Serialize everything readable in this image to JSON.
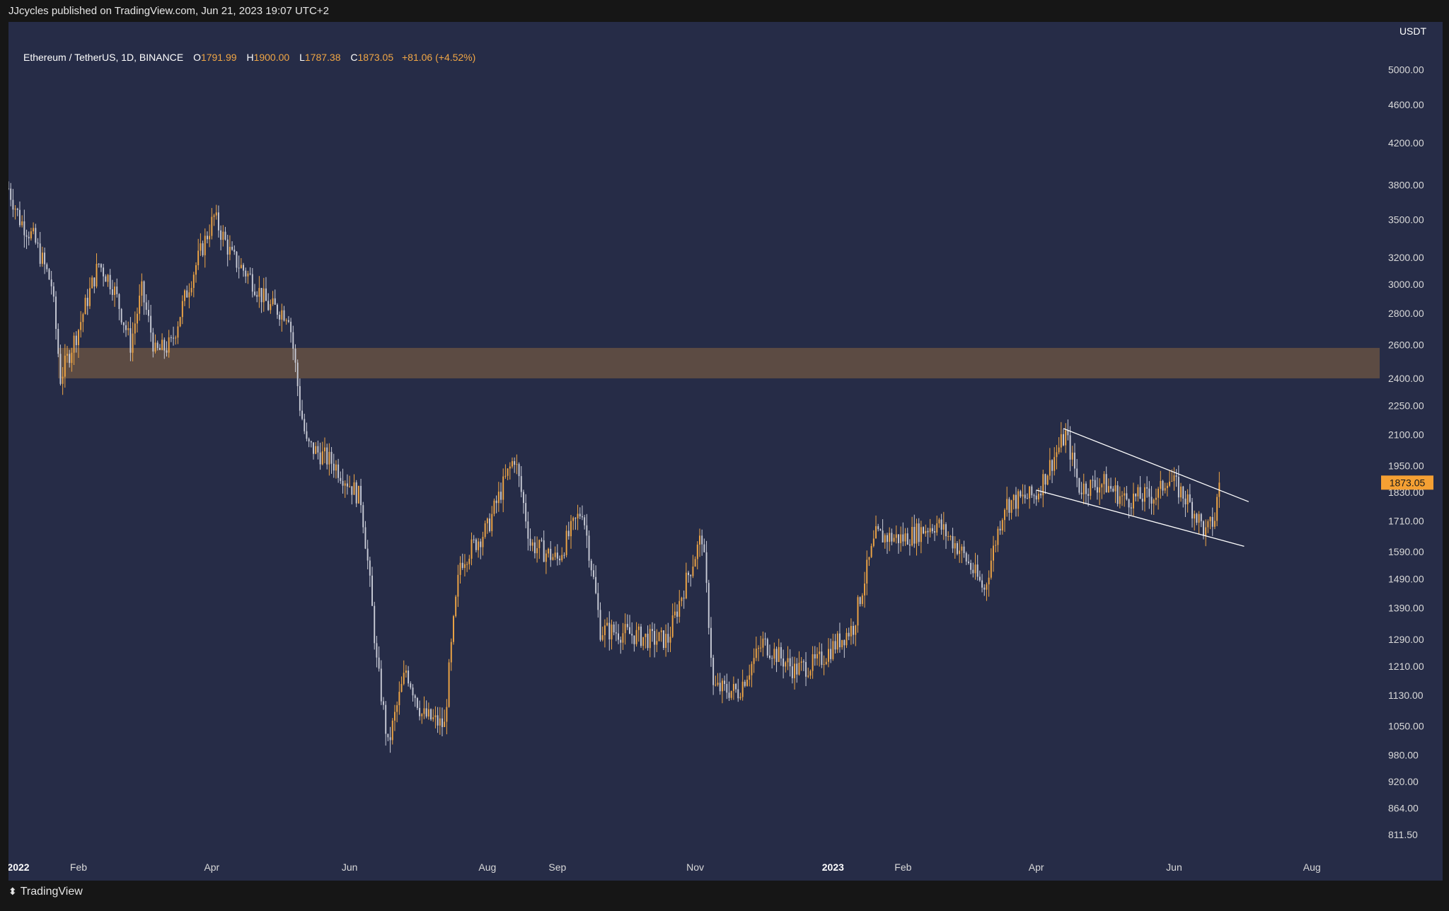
{
  "publisher_line": "JJcycles published on TradingView.com, Jun 21, 2023 19:07 UTC+2",
  "header": {
    "symbol": "Ethereum / TetherUS, 1D, BINANCE",
    "open_label": "O",
    "open_value": "1791.99",
    "high_label": "H",
    "high_value": "1900.00",
    "low_label": "L",
    "low_value": "1787.38",
    "close_label": "C",
    "close_value": "1873.05",
    "change": "+81.06 (+4.52%)"
  },
  "footer": {
    "brand": "TradingView",
    "logo_icon": "tradingview-logo-icon"
  },
  "colors": {
    "background": "#262c47",
    "up_candle": "#f0a645",
    "down_candle": "#c8cbd6",
    "zone": "#a0703f",
    "price_badge": "#f5a033"
  },
  "chart_data": {
    "type": "candlestick",
    "symbol": "ETHUSDT",
    "timeframe": "1D",
    "exchange": "BINANCE",
    "currency_label": "USDT",
    "y_scale": "log",
    "y_range": [
      770,
      5600
    ],
    "x_range": [
      "2022-01-01",
      "2023-08-31"
    ],
    "x_tick_labels": [
      {
        "date": "2022-01-01",
        "label": "2022",
        "bold": true
      },
      {
        "date": "2022-02-01",
        "label": "Feb"
      },
      {
        "date": "2022-04-01",
        "label": "Apr"
      },
      {
        "date": "2022-06-01",
        "label": "Jun"
      },
      {
        "date": "2022-08-01",
        "label": "Aug"
      },
      {
        "date": "2022-09-01",
        "label": "Sep"
      },
      {
        "date": "2022-11-01",
        "label": "Nov"
      },
      {
        "date": "2023-01-01",
        "label": "2023",
        "bold": true
      },
      {
        "date": "2023-02-01",
        "label": "Feb"
      },
      {
        "date": "2023-04-01",
        "label": "Apr"
      },
      {
        "date": "2023-06-01",
        "label": "Jun"
      },
      {
        "date": "2023-08-01",
        "label": "Aug"
      }
    ],
    "y_tick_labels": [
      "5000.00",
      "4600.00",
      "4200.00",
      "3800.00",
      "3500.00",
      "3200.00",
      "3000.00",
      "2800.00",
      "2600.00",
      "2400.00",
      "2250.00",
      "2100.00",
      "1950.00",
      "1830.00",
      "1710.00",
      "1590.00",
      "1490.00",
      "1390.00",
      "1290.00",
      "1210.00",
      "1130.00",
      "1050.00",
      "980.00",
      "920.00",
      "864.00",
      "811.50"
    ],
    "last_price": "1873.05",
    "price_path": [
      [
        "2022-01-01",
        3770
      ],
      [
        "2022-01-06",
        3500
      ],
      [
        "2022-01-12",
        3350
      ],
      [
        "2022-01-20",
        3000
      ],
      [
        "2022-01-24",
        2400
      ],
      [
        "2022-02-01",
        2700
      ],
      [
        "2022-02-10",
        3150
      ],
      [
        "2022-02-16",
        3000
      ],
      [
        "2022-02-24",
        2600
      ],
      [
        "2022-03-01",
        2950
      ],
      [
        "2022-03-07",
        2550
      ],
      [
        "2022-03-14",
        2600
      ],
      [
        "2022-03-22",
        3000
      ],
      [
        "2022-04-02",
        3520
      ],
      [
        "2022-04-10",
        3200
      ],
      [
        "2022-04-18",
        3050
      ],
      [
        "2022-04-26",
        2850
      ],
      [
        "2022-05-05",
        2800
      ],
      [
        "2022-05-10",
        2250
      ],
      [
        "2022-05-13",
        2050
      ],
      [
        "2022-05-25",
        1960
      ],
      [
        "2022-06-06",
        1800
      ],
      [
        "2022-06-13",
        1220
      ],
      [
        "2022-06-18",
        1000
      ],
      [
        "2022-06-26",
        1200
      ],
      [
        "2022-07-03",
        1080
      ],
      [
        "2022-07-13",
        1050
      ],
      [
        "2022-07-20",
        1550
      ],
      [
        "2022-08-01",
        1680
      ],
      [
        "2022-08-13",
        1990
      ],
      [
        "2022-08-20",
        1620
      ],
      [
        "2022-09-01",
        1560
      ],
      [
        "2022-09-12",
        1760
      ],
      [
        "2022-09-20",
        1320
      ],
      [
        "2022-10-01",
        1310
      ],
      [
        "2022-10-13",
        1290
      ],
      [
        "2022-10-20",
        1290
      ],
      [
        "2022-11-04",
        1650
      ],
      [
        "2022-11-09",
        1150
      ],
      [
        "2022-11-20",
        1140
      ],
      [
        "2022-12-01",
        1280
      ],
      [
        "2022-12-15",
        1200
      ],
      [
        "2022-12-25",
        1220
      ],
      [
        "2023-01-10",
        1330
      ],
      [
        "2023-01-20",
        1650
      ],
      [
        "2023-02-01",
        1640
      ],
      [
        "2023-02-16",
        1700
      ],
      [
        "2023-02-26",
        1600
      ],
      [
        "2023-03-09",
        1450
      ],
      [
        "2023-03-18",
        1780
      ],
      [
        "2023-04-01",
        1820
      ],
      [
        "2023-04-14",
        2100
      ],
      [
        "2023-04-20",
        1850
      ],
      [
        "2023-05-01",
        1870
      ],
      [
        "2023-05-10",
        1800
      ],
      [
        "2023-05-25",
        1820
      ],
      [
        "2023-05-29",
        1900
      ],
      [
        "2023-06-05",
        1820
      ],
      [
        "2023-06-10",
        1750
      ],
      [
        "2023-06-15",
        1660
      ],
      [
        "2023-06-19",
        1720
      ],
      [
        "2023-06-21",
        1873
      ]
    ],
    "annotations": {
      "resistance_zone": {
        "from": "2022-01-23",
        "to": "2023-08-31",
        "low": 2400,
        "high": 2580
      },
      "channel_upper": [
        [
          "2023-04-13",
          2130
        ],
        [
          "2023-07-04",
          1790
        ]
      ],
      "channel_lower": [
        [
          "2023-04-01",
          1840
        ],
        [
          "2023-07-02",
          1610
        ]
      ]
    }
  }
}
